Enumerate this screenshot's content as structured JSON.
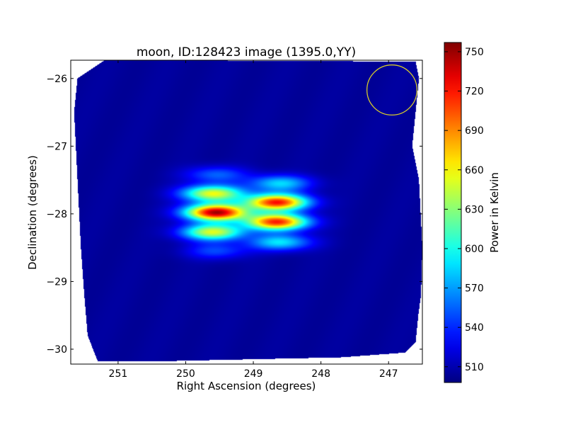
{
  "chart_data": {
    "type": "heatmap",
    "title": "moon, ID:128423 image (1395.0,YY)",
    "xlabel": "Right Ascension (degrees)",
    "ylabel": "Declination (degrees)",
    "xlim": [
      251.7,
      246.5
    ],
    "ylim": [
      -30.22,
      -25.73
    ],
    "x_ticks": [
      251,
      250,
      249,
      248,
      247
    ],
    "x_tick_labels": [
      "251",
      "250",
      "249",
      "248",
      "247"
    ],
    "y_ticks": [
      -26,
      -27,
      -28,
      -29,
      -30
    ],
    "y_tick_labels": [
      "−26",
      "−27",
      "−28",
      "−29",
      "−30"
    ],
    "colorbar": {
      "label": "Power in Kelvin",
      "range": [
        498,
        757
      ],
      "ticks": [
        510,
        540,
        570,
        600,
        630,
        660,
        690,
        720,
        750
      ],
      "tick_labels": [
        "510",
        "540",
        "570",
        "600",
        "630",
        "660",
        "690",
        "720",
        "750"
      ],
      "colormap": "jet"
    },
    "background_level": 505,
    "footprint": [
      [
        251.2,
        -25.73
      ],
      [
        250.3,
        -25.73
      ],
      [
        246.6,
        -25.75
      ],
      [
        246.55,
        -26.0
      ],
      [
        246.6,
        -26.5
      ],
      [
        246.65,
        -27.0
      ],
      [
        246.55,
        -27.5
      ],
      [
        246.5,
        -28.5
      ],
      [
        246.52,
        -29.2
      ],
      [
        246.56,
        -29.5
      ],
      [
        246.6,
        -29.9
      ],
      [
        246.75,
        -30.05
      ],
      [
        247.7,
        -30.12
      ],
      [
        250.5,
        -30.18
      ],
      [
        251.3,
        -30.18
      ],
      [
        251.45,
        -29.8
      ],
      [
        251.5,
        -29.2
      ],
      [
        251.55,
        -28.5
      ],
      [
        251.6,
        -27.5
      ],
      [
        251.65,
        -26.5
      ],
      [
        251.6,
        -26.0
      ]
    ],
    "sources": [
      {
        "ra": 249.55,
        "dec": -27.42,
        "peak": 555
      },
      {
        "ra": 249.6,
        "dec": -27.7,
        "peak": 655
      },
      {
        "ra": 249.55,
        "dec": -27.98,
        "peak": 745
      },
      {
        "ra": 249.6,
        "dec": -28.27,
        "peak": 650
      },
      {
        "ra": 249.55,
        "dec": -28.55,
        "peak": 548
      },
      {
        "ra": 248.6,
        "dec": -27.55,
        "peak": 585
      },
      {
        "ra": 248.65,
        "dec": -27.83,
        "peak": 720
      },
      {
        "ra": 248.65,
        "dec": -28.12,
        "peak": 715
      },
      {
        "ra": 248.6,
        "dec": -28.42,
        "peak": 590
      }
    ],
    "source_sigma_ra": 0.32,
    "source_sigma_dec": 0.085,
    "beam_circle": {
      "ra": 246.95,
      "dec": -26.17,
      "radius_deg": 0.37,
      "color": "#d4c92c"
    }
  }
}
